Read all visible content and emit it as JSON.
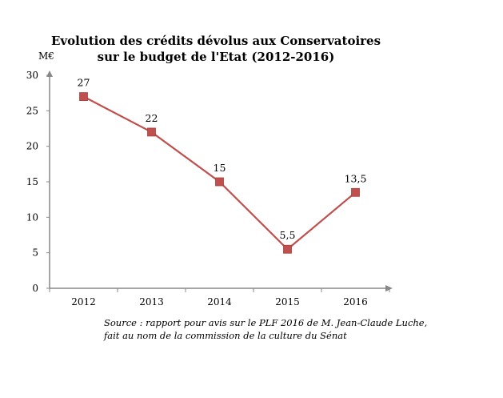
{
  "chart_data": {
    "type": "line",
    "title": [
      "Evolution des crédits dévolus aux Conservatoires",
      "sur le budget de l'Etat (2012-2016)"
    ],
    "ylabel": "M€",
    "xlabel": "",
    "categories": [
      "2012",
      "2013",
      "2014",
      "2015",
      "2016"
    ],
    "values": [
      27,
      22,
      15,
      5.5,
      13.5
    ],
    "data_labels": [
      "27",
      "22",
      "15",
      "5,5",
      "13,5"
    ],
    "ylim": [
      0,
      30
    ],
    "yticks": [
      "0",
      "5",
      "10",
      "15",
      "20",
      "25",
      "30"
    ],
    "grid": false,
    "legend": "none",
    "series_color": "#c0504d",
    "source": [
      "Source : rapport pour avis sur le PLF 2016 de M. Jean-Claude Luche,",
      "fait au nom de la commission de la culture du Sénat"
    ]
  }
}
